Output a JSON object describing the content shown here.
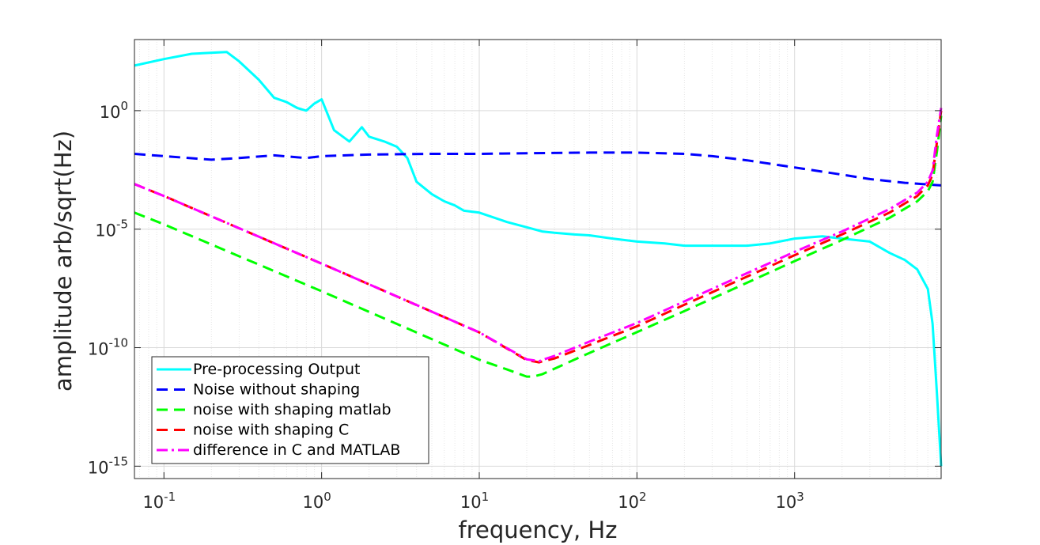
{
  "chart_data": {
    "type": "line",
    "title": "",
    "xlabel": "frequency, Hz",
    "ylabel": "amplitude arb/sqrt(Hz)",
    "xscale": "log",
    "yscale": "log",
    "xlim": [
      0.065,
      8500
    ],
    "ylim": [
      3e-16,
      1000.0
    ],
    "grid": true,
    "legend_position": "bottom-left",
    "x_ticks": [
      {
        "value": 0.1,
        "base": "10",
        "exp": "-1"
      },
      {
        "value": 1,
        "base": "10",
        "exp": "0"
      },
      {
        "value": 10,
        "base": "10",
        "exp": "1"
      },
      {
        "value": 100,
        "base": "10",
        "exp": "2"
      },
      {
        "value": 1000,
        "base": "10",
        "exp": "3"
      }
    ],
    "y_ticks": [
      {
        "value": 1,
        "base": "10",
        "exp": "0"
      },
      {
        "value": 1e-05,
        "base": "10",
        "exp": "-5"
      },
      {
        "value": 1e-10,
        "base": "10",
        "exp": "-10"
      },
      {
        "value": 1e-15,
        "base": "10",
        "exp": "-15"
      }
    ],
    "series": [
      {
        "name": "Pre-processing Output",
        "color": "#00FFFF",
        "dash": "solid",
        "x": [
          0.065,
          0.1,
          0.15,
          0.25,
          0.3,
          0.4,
          0.5,
          0.6,
          0.7,
          0.8,
          0.9,
          1.0,
          1.2,
          1.5,
          1.8,
          2.0,
          2.5,
          3.0,
          3.5,
          4.0,
          5.0,
          6.0,
          7.0,
          8.0,
          10,
          15,
          20,
          25,
          30,
          40,
          50,
          70,
          100,
          150,
          200,
          300,
          500,
          700,
          1000,
          1500,
          2000,
          3000,
          4000,
          5000,
          6000,
          7000,
          7500,
          8000,
          8500
        ],
        "y": [
          80,
          150,
          250,
          300,
          120,
          20,
          3.5,
          2.3,
          1.3,
          1.0,
          2.0,
          3.0,
          0.15,
          0.05,
          0.2,
          0.08,
          0.05,
          0.03,
          0.01,
          0.001,
          0.0003,
          0.00015,
          0.0001,
          6e-05,
          5e-05,
          2e-05,
          1.2e-05,
          8e-06,
          7e-06,
          6e-06,
          5.5e-06,
          4e-06,
          3e-06,
          2.5e-06,
          2e-06,
          2e-06,
          2e-06,
          2.5e-06,
          4e-06,
          5e-06,
          4e-06,
          3e-06,
          1e-06,
          5e-07,
          2e-07,
          3e-08,
          1e-09,
          1e-12,
          1e-15
        ]
      },
      {
        "name": "Noise without shaping",
        "color": "#0000FF",
        "dash": "dashed",
        "x": [
          0.065,
          0.1,
          0.2,
          0.3,
          0.5,
          0.8,
          1.0,
          2.0,
          5.0,
          10,
          20,
          50,
          100,
          200,
          300,
          500,
          1000,
          2000,
          3000,
          5000,
          8500
        ],
        "y": [
          0.015,
          0.012,
          0.0085,
          0.01,
          0.013,
          0.01,
          0.012,
          0.014,
          0.015,
          0.015,
          0.016,
          0.017,
          0.017,
          0.015,
          0.012,
          0.008,
          0.004,
          0.002,
          0.0013,
          0.0009,
          0.0007
        ]
      },
      {
        "name": "noise with shaping matlab",
        "color": "#00FF00",
        "dash": "dashed",
        "x": [
          0.065,
          0.1,
          1,
          10,
          15,
          20,
          22,
          25,
          30,
          50,
          100,
          200,
          500,
          1000,
          2000,
          4000,
          6000,
          7000,
          7500,
          8000,
          8500
        ],
        "y": [
          5e-05,
          1.6e-05,
          2.4e-08,
          3.1e-11,
          1.2e-11,
          6e-12,
          6e-12,
          7.5e-12,
          1.3e-11,
          6e-11,
          4.5e-10,
          3.5e-09,
          5.5e-08,
          4.5e-07,
          3.5e-06,
          3e-05,
          0.00015,
          0.0004,
          0.001,
          0.02,
          0.6
        ]
      },
      {
        "name": "noise with shaping C",
        "color": "#FF0000",
        "dash": "dashed",
        "x": [
          0.065,
          0.1,
          1,
          10,
          20,
          24,
          25,
          30,
          50,
          100,
          200,
          500,
          1000,
          2000,
          4000,
          6000,
          7000,
          7500,
          8000,
          8500
        ],
        "y": [
          0.0008,
          0.00025,
          3.5e-07,
          4.4e-10,
          3e-11,
          2.4e-11,
          2.6e-11,
          3.5e-11,
          1.3e-10,
          8e-10,
          6.5e-09,
          1e-07,
          8e-07,
          6e-06,
          5e-05,
          0.00025,
          0.0007,
          0.002,
          0.05,
          1.0
        ]
      },
      {
        "name": "difference in C and MATLAB",
        "color": "#FF00FF",
        "dash": "dashdot",
        "x": [
          0.065,
          0.1,
          1,
          10,
          20,
          24,
          25,
          30,
          50,
          100,
          200,
          500,
          1000,
          2000,
          4000,
          6000,
          7000,
          7500,
          8000,
          8500
        ],
        "y": [
          0.0008,
          0.00025,
          3.5e-07,
          4.4e-10,
          3.2e-11,
          2.7e-11,
          3e-11,
          4.5e-11,
          1.8e-10,
          1.1e-09,
          9e-09,
          1.4e-07,
          1.1e-06,
          8e-06,
          7e-05,
          0.00035,
          0.001,
          0.003,
          0.1,
          1.3
        ]
      }
    ]
  }
}
